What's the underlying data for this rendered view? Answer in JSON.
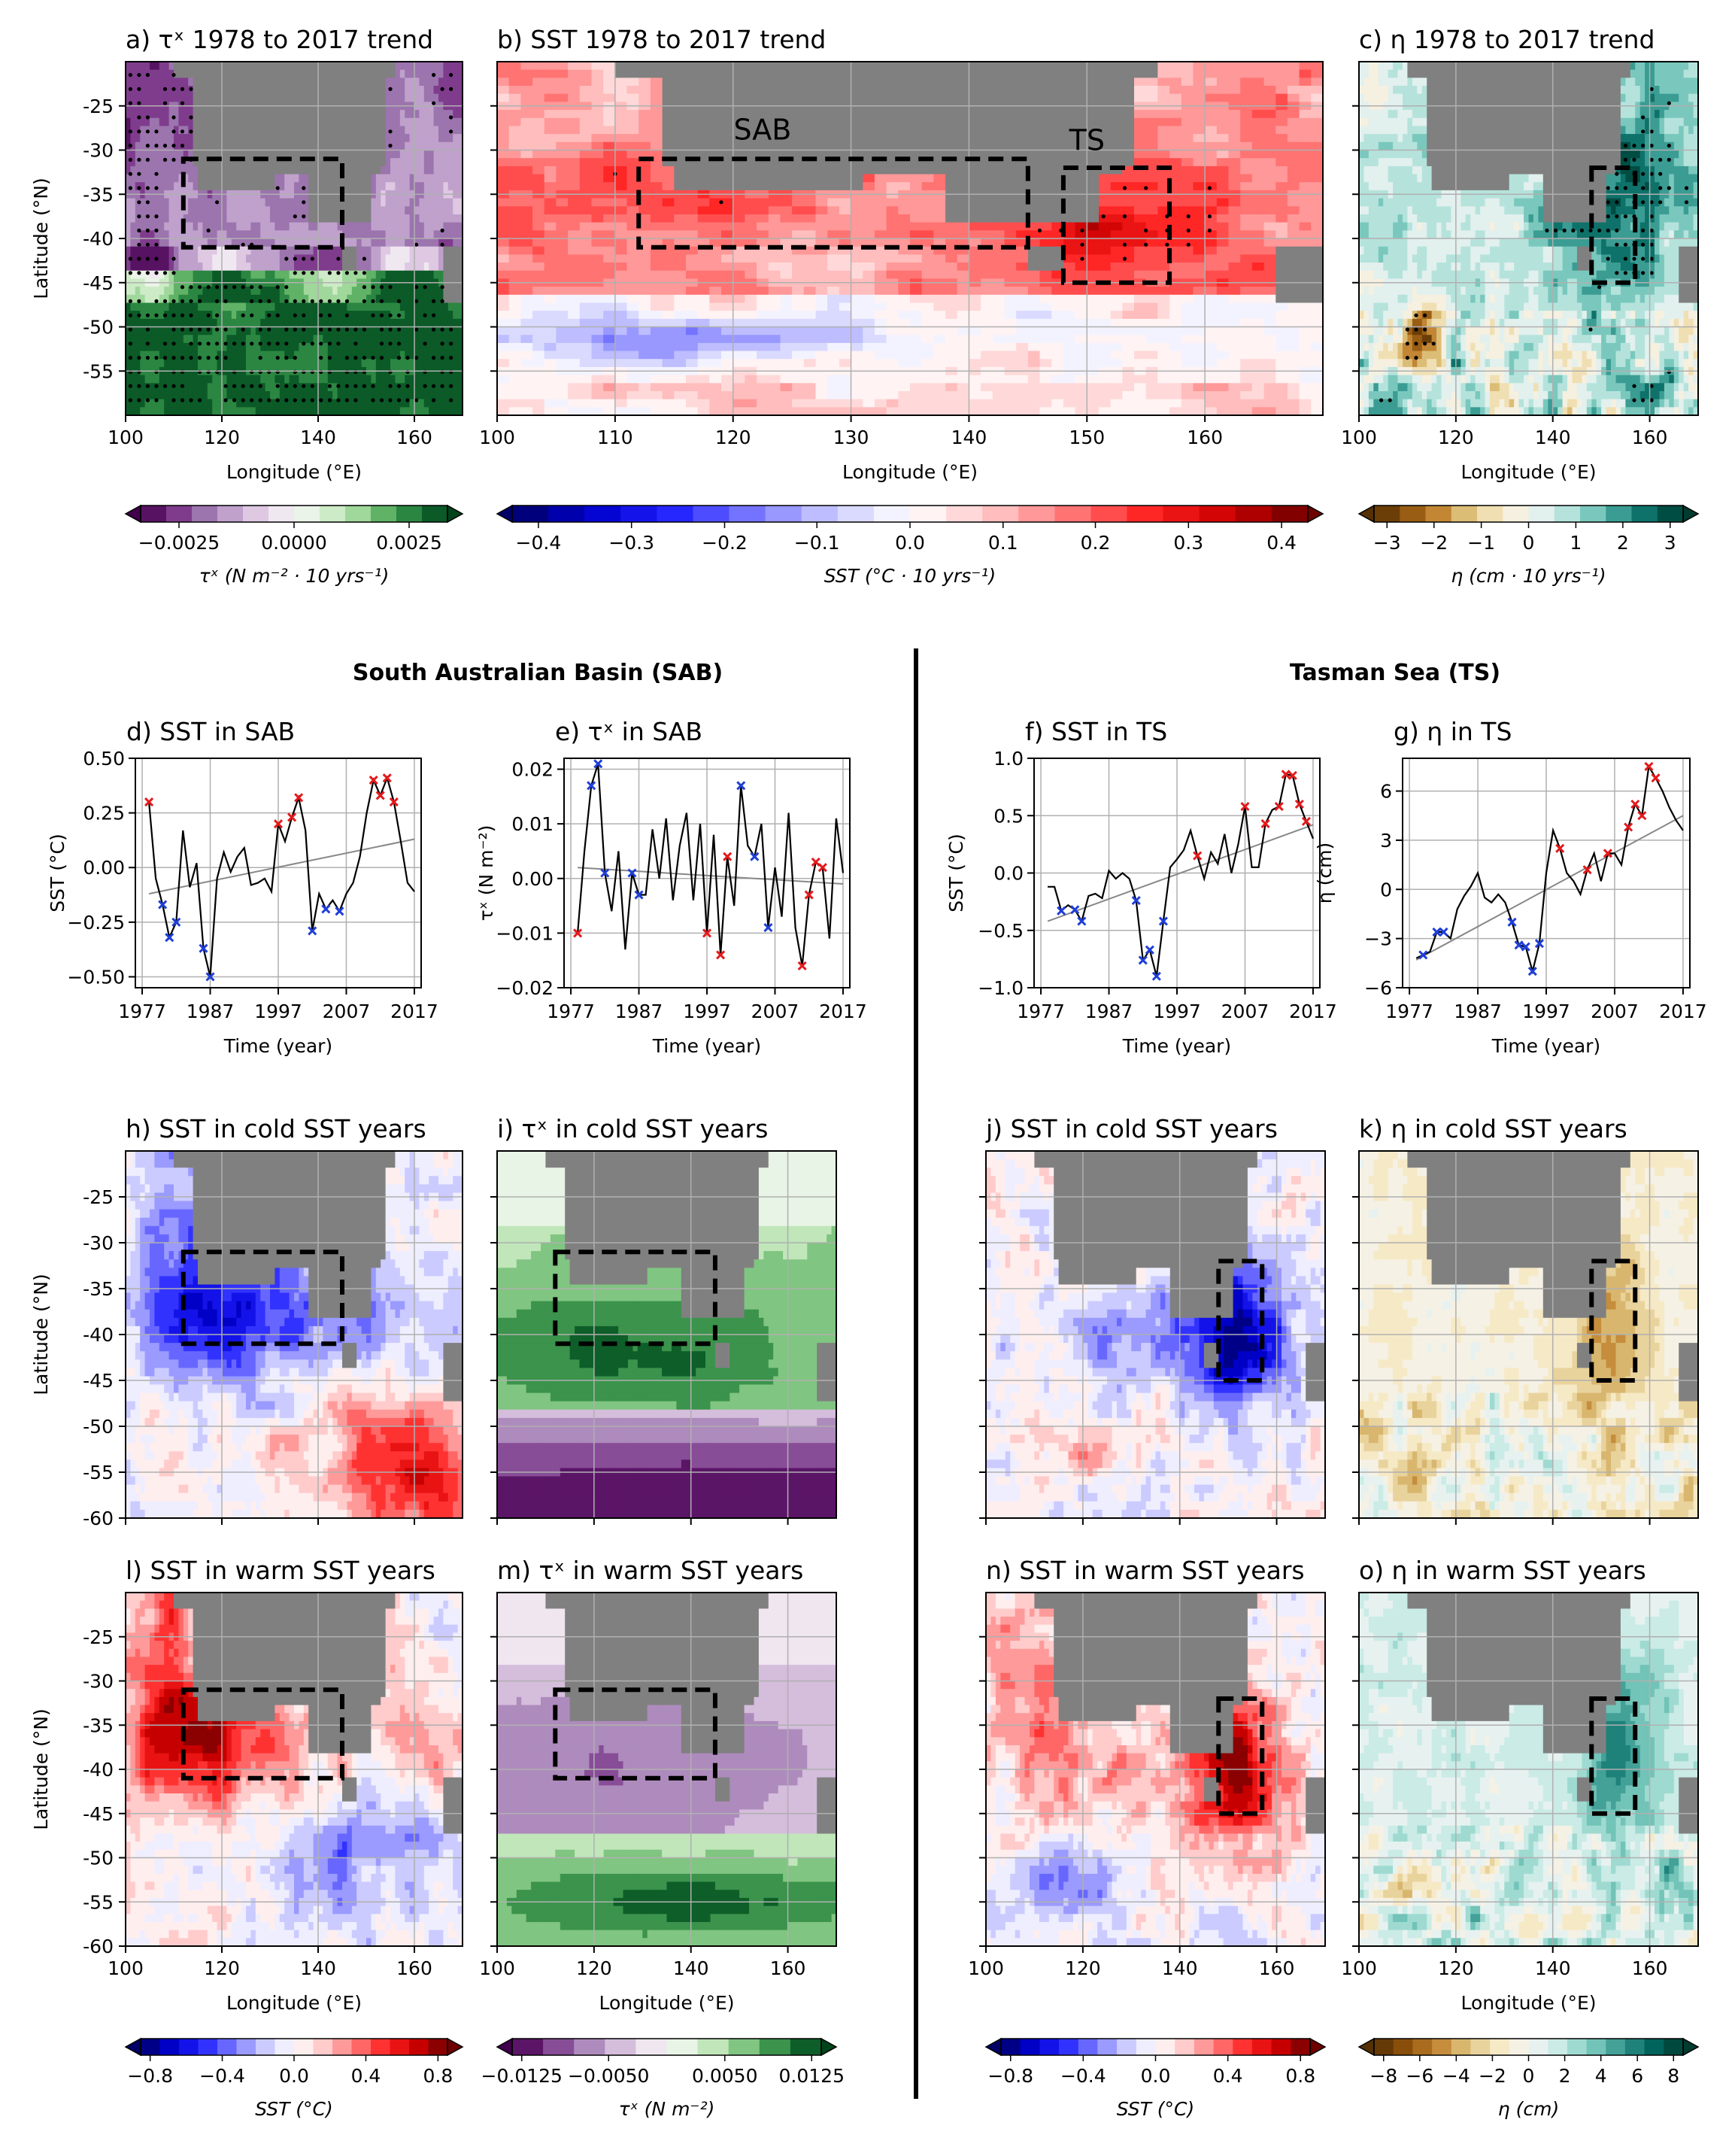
{
  "headers": {
    "sab": "South Australian Basin (SAB)",
    "ts": "Tasman Sea (TS)"
  },
  "colors": {
    "land": "#808080",
    "grid": "#b0b0b0",
    "box": "#000000",
    "warm_marker": "#e41a1c",
    "cold_marker": "#1f3fd8",
    "trend_line": "#888888"
  },
  "map_axes": {
    "lon_ticks_wide": [
      "100",
      "120",
      "140",
      "160"
    ],
    "lon_ticks_sst": [
      "100",
      "110",
      "120",
      "130",
      "140",
      "150",
      "160"
    ],
    "lat_ticks_top": [
      "-25",
      "-30",
      "-35",
      "-40",
      "-45",
      "-50",
      "-55"
    ],
    "lat_ticks_lower": [
      "-25",
      "-30",
      "-35",
      "-40",
      "-45",
      "-50",
      "-55",
      "-60"
    ],
    "xlabel": "Longitude (°E)",
    "ylabel": "Latitude (°N)"
  },
  "boxes": {
    "sab": {
      "lon": [
        112,
        145
      ],
      "lat": [
        -41,
        -31
      ],
      "label": "SAB"
    },
    "ts": {
      "lon": [
        148,
        157
      ],
      "lat": [
        -45,
        -32
      ],
      "label": "TS"
    }
  },
  "map_panels": [
    {
      "id": "a",
      "title": "a) τˣ 1978 to 2017 trend",
      "field": "tau_trend",
      "stipple": true
    },
    {
      "id": "b",
      "title": "b) SST 1978 to 2017 trend",
      "field": "sst_trend",
      "stipple": true
    },
    {
      "id": "c",
      "title": "c) η 1978 to 2017 trend",
      "field": "eta_trend",
      "stipple": true
    },
    {
      "id": "h",
      "title": "h) SST in cold SST years",
      "field": "sst_cold_sab"
    },
    {
      "id": "i",
      "title": "i) τˣ in cold SST years",
      "field": "tau_cold"
    },
    {
      "id": "j",
      "title": "j) SST in cold SST years",
      "field": "sst_cold_ts"
    },
    {
      "id": "k",
      "title": "k) η in cold SST years",
      "field": "eta_cold"
    },
    {
      "id": "l",
      "title": "l) SST in warm SST years",
      "field": "sst_warm_sab"
    },
    {
      "id": "m",
      "title": "m) τˣ in warm SST years",
      "field": "tau_warm"
    },
    {
      "id": "n",
      "title": "n) SST in warm SST years",
      "field": "sst_warm_ts"
    },
    {
      "id": "o",
      "title": "o) η in warm SST years",
      "field": "eta_warm"
    }
  ],
  "colorbars": [
    {
      "id": "cb_tau_trend",
      "ticks": [
        "−0.0025",
        "0.0000",
        "0.0025"
      ],
      "label": "τˣ (N m⁻² · 10 yrs⁻¹)"
    },
    {
      "id": "cb_sst_trend",
      "ticks": [
        "−0.4",
        "−0.3",
        "−0.2",
        "−0.1",
        "0.0",
        "0.1",
        "0.2",
        "0.3",
        "0.4"
      ],
      "label": "SST (°C · 10 yrs⁻¹)"
    },
    {
      "id": "cb_eta_trend",
      "ticks": [
        "−3",
        "−2",
        "−1",
        "0",
        "1",
        "2",
        "3"
      ],
      "label": "η (cm · 10 yrs⁻¹)"
    },
    {
      "id": "cb_sst_sab",
      "ticks": [
        "−0.8",
        "−0.4",
        "0.0",
        "0.4",
        "0.8"
      ],
      "label": "SST (°C)"
    },
    {
      "id": "cb_tau",
      "ticks": [
        "−0.0125",
        "−0.0050",
        "0.0050",
        "0.0125"
      ],
      "label": "τˣ (N m⁻²)"
    },
    {
      "id": "cb_sst_ts",
      "ticks": [
        "−0.8",
        "−0.4",
        "0.0",
        "0.4",
        "0.8"
      ],
      "label": "SST (°C)"
    },
    {
      "id": "cb_eta",
      "ticks": [
        "−8",
        "−6",
        "−4",
        "−2",
        "0",
        "2",
        "4",
        "6",
        "8"
      ],
      "label": "η (cm)"
    }
  ],
  "chart_data": [
    {
      "id": "d",
      "type": "line",
      "title": "d) SST in SAB",
      "xlabel": "Time (year)",
      "ylabel": "SST (°C)",
      "xlim": [
        1976,
        2018
      ],
      "ylim": [
        -0.55,
        0.5
      ],
      "x_ticks": [
        "1977",
        "1987",
        "1997",
        "2007",
        "2017"
      ],
      "y_ticks": [
        "0.50",
        "0.25",
        "0.00",
        "−0.25",
        "−0.50"
      ],
      "x": [
        1978,
        1979,
        1980,
        1981,
        1982,
        1983,
        1984,
        1985,
        1986,
        1987,
        1988,
        1989,
        1990,
        1991,
        1992,
        1993,
        1994,
        1995,
        1996,
        1997,
        1998,
        1999,
        2000,
        2001,
        2002,
        2003,
        2004,
        2005,
        2006,
        2007,
        2008,
        2009,
        2010,
        2011,
        2012,
        2013,
        2014,
        2015,
        2016,
        2017
      ],
      "values": [
        0.3,
        -0.05,
        -0.17,
        -0.32,
        -0.25,
        0.17,
        -0.09,
        0.02,
        -0.37,
        -0.5,
        -0.05,
        0.07,
        -0.02,
        0.05,
        0.09,
        -0.08,
        -0.07,
        -0.05,
        -0.11,
        0.2,
        0.12,
        0.23,
        0.32,
        0.17,
        -0.29,
        -0.12,
        -0.19,
        -0.15,
        -0.2,
        -0.12,
        -0.07,
        0.05,
        0.25,
        0.4,
        0.33,
        0.41,
        0.3,
        0.12,
        -0.07,
        -0.11
      ],
      "trend": [
        -0.12,
        0.13
      ],
      "warm_years": [
        1978,
        1997,
        1999,
        2000,
        2011,
        2012,
        2013,
        2014
      ],
      "cold_years": [
        1980,
        1981,
        1982,
        1986,
        1987,
        2002,
        2004,
        2006
      ]
    },
    {
      "id": "e",
      "type": "line",
      "title": "e) τˣ in SAB",
      "xlabel": "Time (year)",
      "ylabel": "τˣ (N m⁻²)",
      "xlim": [
        1976,
        2018
      ],
      "ylim": [
        -0.02,
        0.022
      ],
      "x_ticks": [
        "1977",
        "1987",
        "1997",
        "2007",
        "2017"
      ],
      "y_ticks": [
        "0.02",
        "0.01",
        "0.00",
        "−0.01",
        "−0.02"
      ],
      "x": [
        1978,
        1979,
        1980,
        1981,
        1982,
        1983,
        1984,
        1985,
        1986,
        1987,
        1988,
        1989,
        1990,
        1991,
        1992,
        1993,
        1994,
        1995,
        1996,
        1997,
        1998,
        1999,
        2000,
        2001,
        2002,
        2003,
        2004,
        2005,
        2006,
        2007,
        2008,
        2009,
        2010,
        2011,
        2012,
        2013,
        2014,
        2015,
        2016,
        2017
      ],
      "values": [
        -0.01,
        0.005,
        0.017,
        0.021,
        0.001,
        -0.006,
        0.005,
        -0.013,
        0.001,
        -0.003,
        -0.003,
        0.009,
        0.0,
        0.011,
        -0.004,
        0.006,
        0.012,
        -0.004,
        0.01,
        -0.01,
        0.008,
        -0.014,
        0.004,
        -0.005,
        0.017,
        0.006,
        0.004,
        0.01,
        -0.009,
        0.002,
        -0.007,
        0.012,
        -0.009,
        -0.016,
        -0.003,
        0.003,
        0.002,
        -0.011,
        0.011,
        0.001
      ],
      "trend": [
        0.002,
        -0.001
      ],
      "warm_years": [
        1978,
        1997,
        1999,
        2000,
        2011,
        2012,
        2013,
        2014
      ],
      "cold_years": [
        1980,
        1981,
        1982,
        1986,
        1987,
        2002,
        2004,
        2006
      ]
    },
    {
      "id": "f",
      "type": "line",
      "title": "f) SST in TS",
      "xlabel": "Time (year)",
      "ylabel": "SST (°C)",
      "xlim": [
        1976,
        2018
      ],
      "ylim": [
        -1.0,
        1.0
      ],
      "x_ticks": [
        "1977",
        "1987",
        "1997",
        "2007",
        "2017"
      ],
      "y_ticks": [
        "1.0",
        "0.5",
        "0.0",
        "−0.5",
        "−1.0"
      ],
      "x": [
        1978,
        1979,
        1980,
        1981,
        1982,
        1983,
        1984,
        1985,
        1986,
        1987,
        1988,
        1989,
        1990,
        1991,
        1992,
        1993,
        1994,
        1995,
        1996,
        1997,
        1998,
        1999,
        2000,
        2001,
        2002,
        2003,
        2004,
        2005,
        2006,
        2007,
        2008,
        2009,
        2010,
        2011,
        2012,
        2013,
        2014,
        2015,
        2016,
        2017
      ],
      "values": [
        -0.12,
        -0.12,
        -0.33,
        -0.28,
        -0.32,
        -0.42,
        -0.2,
        -0.18,
        -0.22,
        0.02,
        -0.05,
        0.0,
        -0.05,
        -0.24,
        -0.76,
        -0.67,
        -0.9,
        -0.42,
        0.05,
        0.12,
        0.2,
        0.37,
        0.15,
        -0.05,
        0.18,
        0.08,
        0.34,
        0.0,
        0.25,
        0.58,
        0.05,
        0.05,
        0.43,
        0.55,
        0.58,
        0.86,
        0.85,
        0.6,
        0.45,
        0.3
      ],
      "trend": [
        -0.42,
        0.42
      ],
      "warm_years": [
        2000,
        2007,
        2010,
        2012,
        2013,
        2014,
        2015,
        2016
      ],
      "cold_years": [
        1980,
        1982,
        1983,
        1991,
        1992,
        1993,
        1994,
        1995
      ]
    },
    {
      "id": "g",
      "type": "line",
      "title": "g) η in TS",
      "xlabel": "Time (year)",
      "ylabel": "η (cm)",
      "xlim": [
        1976,
        2018
      ],
      "ylim": [
        -6,
        8
      ],
      "x_ticks": [
        "1977",
        "1987",
        "1997",
        "2007",
        "2017"
      ],
      "y_ticks": [
        "6",
        "3",
        "0",
        "−3",
        "−6"
      ],
      "x": [
        1978,
        1979,
        1980,
        1981,
        1982,
        1983,
        1984,
        1985,
        1986,
        1987,
        1988,
        1989,
        1990,
        1991,
        1992,
        1993,
        1994,
        1995,
        1996,
        1997,
        1998,
        1999,
        2000,
        2001,
        2002,
        2003,
        2004,
        2005,
        2006,
        2007,
        2008,
        2009,
        2010,
        2011,
        2012,
        2013,
        2014,
        2015,
        2016,
        2017
      ],
      "values": [
        -4.2,
        -4.0,
        -3.8,
        -2.6,
        -2.6,
        -3.0,
        -1.2,
        -0.4,
        0.2,
        1.0,
        -0.5,
        -0.8,
        -0.3,
        -0.8,
        -2.0,
        -3.4,
        -3.5,
        -5.0,
        -3.3,
        1.0,
        3.6,
        2.5,
        1.0,
        0.5,
        -0.3,
        1.2,
        2.2,
        0.5,
        2.2,
        2.2,
        1.5,
        3.8,
        5.2,
        4.5,
        7.5,
        6.8,
        6.0,
        5.0,
        4.2,
        3.6
      ],
      "trend": [
        -4.3,
        4.5
      ],
      "warm_years": [
        1999,
        2003,
        2006,
        2009,
        2010,
        2011,
        2012,
        2013
      ],
      "cold_years": [
        1979,
        1981,
        1982,
        1992,
        1993,
        1994,
        1995,
        1996
      ]
    }
  ]
}
